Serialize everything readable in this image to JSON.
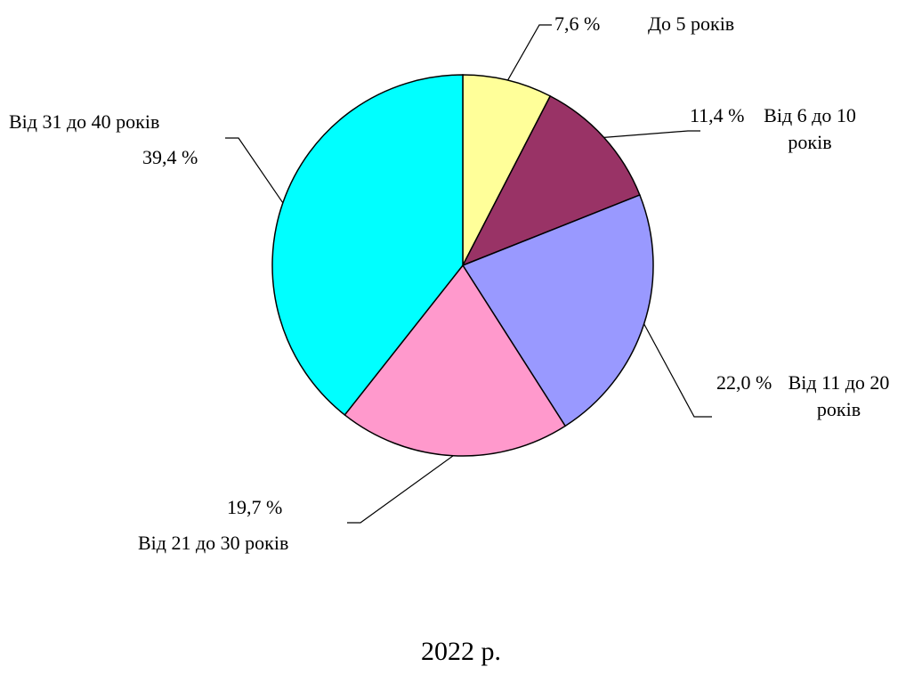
{
  "chart_data": {
    "type": "pie",
    "title": "2022 р.",
    "categories": [
      "До 5 років",
      "Від 6 до 10 років",
      "Від 11 до 20 років",
      "Від 21 до 30 років",
      "Від 31 до 40 років"
    ],
    "values": [
      7.6,
      11.4,
      22.0,
      19.7,
      39.4
    ],
    "value_labels": [
      "7,6 %",
      "11,4 %",
      "22,0 %",
      "19,7 %",
      "39,4 %"
    ],
    "colors": [
      "#ffff99",
      "#993366",
      "#9999ff",
      "#ff99cc",
      "#00ffff"
    ]
  }
}
